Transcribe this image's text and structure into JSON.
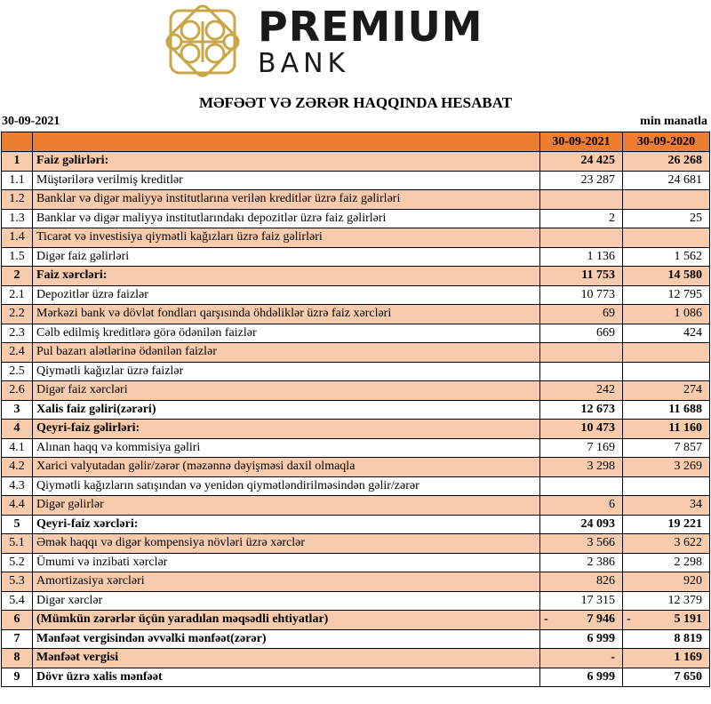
{
  "logo": {
    "name": "PREMIUM",
    "sub": "BANK",
    "gold": "#C9A646"
  },
  "title": "MƏFƏƏT VƏ ZƏRƏR HAQQINDA HESABAT",
  "report_date": "30-09-2021",
  "unit": "min manatla",
  "colors": {
    "header": "#ED7D31",
    "alt_row": "#F8CBAD"
  },
  "columns": [
    "30-09-2021",
    "30-09-2020"
  ],
  "rows": [
    {
      "no": "1",
      "label": "Faiz gəlirləri:",
      "v1": "24 425",
      "v2": "26 268",
      "bold": true
    },
    {
      "no": "1.1",
      "label": "Müştərilərə verilmiş kreditlər",
      "v1": "23 287",
      "v2": "24 681"
    },
    {
      "no": "1.2",
      "label": "Banklar və digər maliyyə institutlarına verilən kreditlər üzrə faiz gəlirləri",
      "v1": "",
      "v2": ""
    },
    {
      "no": "1.3",
      "label": "Banklar və digər maliyyə institutlarındakı depozitlər üzrə faiz gəlirləri",
      "v1": "2",
      "v2": "25"
    },
    {
      "no": "1.4",
      "label": "Ticarət və investisiya qiymətli kağızları üzrə faiz gəlirləri",
      "v1": "",
      "v2": ""
    },
    {
      "no": "1.5",
      "label": "Digər faiz gəlirləri",
      "v1": "1 136",
      "v2": "1 562"
    },
    {
      "no": "2",
      "label": "Faiz xərcləri:",
      "v1": "11 753",
      "v2": "14 580",
      "bold": true
    },
    {
      "no": "2.1",
      "label": "Depozitlər üzrə faizlər",
      "v1": "10 773",
      "v2": "12 795"
    },
    {
      "no": "2.2",
      "label": "Mərkəzi bank və dövlət fondları qarşısında öhdəliklər üzrə faiz xərcləri",
      "v1": "69",
      "v2": "1 086"
    },
    {
      "no": "2.3",
      "label": "Cəlb edilmiş kreditlərə görə ödənilən faizlər",
      "v1": "669",
      "v2": "424"
    },
    {
      "no": "2.4",
      "label": "Pul bazarı alətlərinə ödənilən faizlər",
      "v1": "",
      "v2": ""
    },
    {
      "no": "2.5",
      "label": "Qiymətli kağızlar üzrə faizlər",
      "v1": "",
      "v2": ""
    },
    {
      "no": "2.6",
      "label": "Digər faiz xərcləri",
      "v1": "242",
      "v2": "274"
    },
    {
      "no": "3",
      "label": "Xalis faiz gəliri(zərəri)",
      "v1": "12 673",
      "v2": "11 688",
      "bold": true
    },
    {
      "no": "4",
      "label": "Qeyri-faiz gəlirləri:",
      "v1": "10 473",
      "v2": "11 160",
      "bold": true
    },
    {
      "no": "4.1",
      "label": "Alınan haqq və kommisiya gəliri",
      "v1": "7 169",
      "v2": "7 857"
    },
    {
      "no": "4.2",
      "label": "Xarici valyutadan gəlir/zərər (məzənnə dəyişməsi daxil olmaqla",
      "v1": "3 298",
      "v2": "3 269"
    },
    {
      "no": "4.3",
      "label": "Qiymətli kağızların satışından və yenidən qiymətləndirilməsindən gəlir/zərər",
      "v1": "",
      "v2": ""
    },
    {
      "no": "4.4",
      "label": "Digər gəlirlər",
      "v1": "6",
      "v2": "34"
    },
    {
      "no": "5",
      "label": "Qeyri-faiz xərcləri:",
      "v1": "24 093",
      "v2": "19 221",
      "bold": true
    },
    {
      "no": "5.1",
      "label": "Əmək haqqı və digər kompensiya növləri üzrə xərclər",
      "v1": "3 566",
      "v2": "3 622"
    },
    {
      "no": "5.2",
      "label": "Ümumi və inzibati xərclər",
      "v1": "2 386",
      "v2": "2 298"
    },
    {
      "no": "5.3",
      "label": "Amortizasiya xərcləri",
      "v1": "826",
      "v2": "920"
    },
    {
      "no": "5.4",
      "label": "Digər xərclər",
      "v1": "17 315",
      "v2": "12 379"
    },
    {
      "no": "6",
      "label": "(Mümkün zərərlər üçün yaradılan məqsədli ehtiyatlar)",
      "v1": "7 946",
      "v2": "5 191",
      "neg1": "-",
      "neg2": "-",
      "bold": true
    },
    {
      "no": "7",
      "label": "Mənfəət vergisindən əvvəlki mənfəət(zərər)",
      "v1": "6 999",
      "v2": "8 819",
      "bold": true
    },
    {
      "no": "8",
      "label": "Mənfəət vergisi",
      "v1": "-",
      "v2": "1 169",
      "bold": true
    },
    {
      "no": "9",
      "label": "Dövr üzrə xalis mənfəət",
      "v1": "6 999",
      "v2": "7 650",
      "bold": true
    }
  ]
}
